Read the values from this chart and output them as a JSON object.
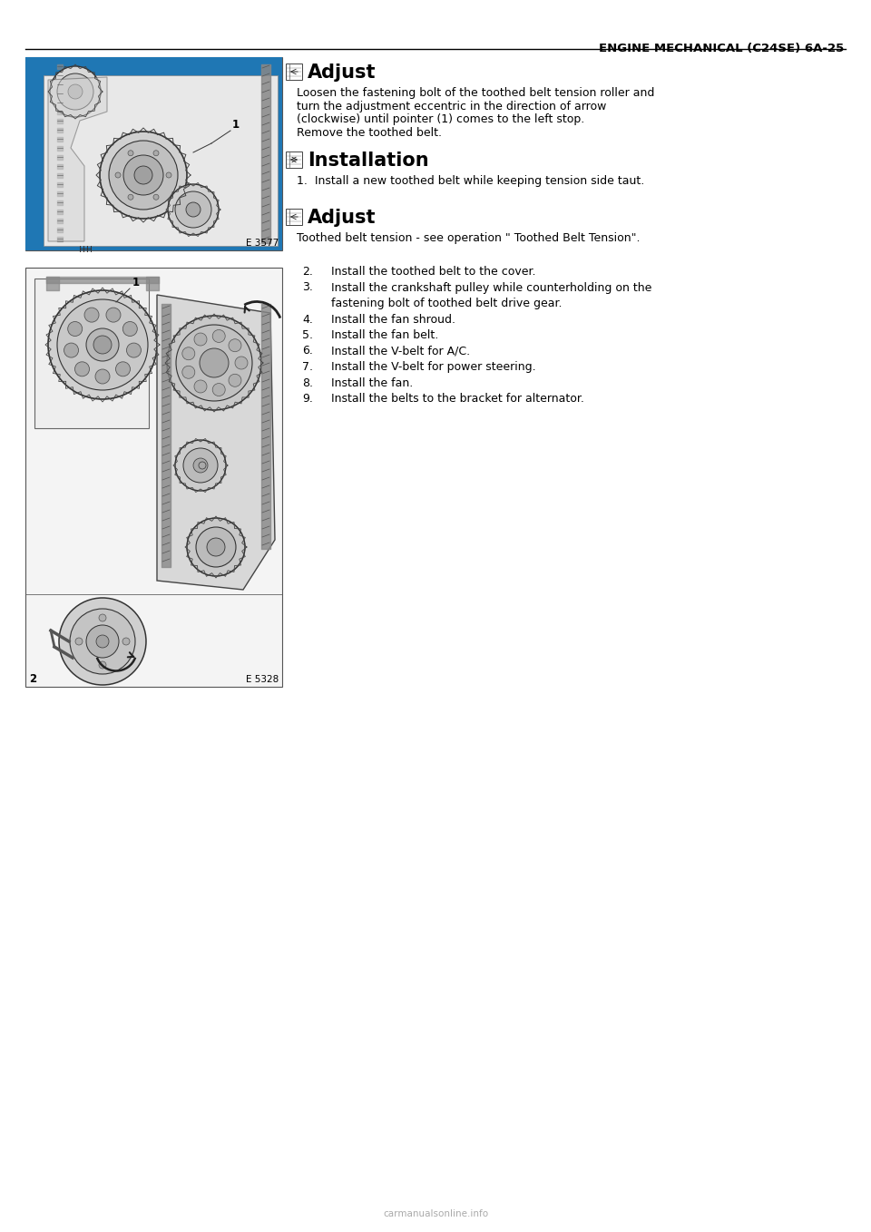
{
  "page_bg": "#ffffff",
  "header_text": "ENGINE MECHANICAL (C24SE) 6A-25",
  "header_fontsize": 10,
  "section1_title": "Adjust",
  "section1_body_lines": [
    "Loosen the fastening bolt of the toothed belt tension roller and",
    "turn the adjustment eccentric in the direction of arrow",
    "(clockwise) until pointer (1) comes to the left stop.",
    "Remove the toothed belt."
  ],
  "section2_title": "Installation",
  "section2_body_lines": [
    "1.  Install a new toothed belt while keeping tension side taut."
  ],
  "section3_title": "Adjust",
  "section3_body_lines": [
    "Toothed belt tension - see operation \" Toothed Belt Tension\"."
  ],
  "numbered_items": [
    [
      "2.",
      "Install the toothed belt to the cover."
    ],
    [
      "3.",
      "Install the crankshaft pulley while counterholding on the"
    ],
    [
      "",
      "fastening bolt of toothed belt drive gear."
    ],
    [
      "4.",
      "Install the fan shroud."
    ],
    [
      "5.",
      "Install the fan belt."
    ],
    [
      "6.",
      "Install the V-belt for A/C."
    ],
    [
      "7.",
      "Install the V-belt for power steering."
    ],
    [
      "8.",
      "Install the fan."
    ],
    [
      "9.",
      "Install the belts to the bracket for alternator."
    ]
  ],
  "img1_label": "E 3577",
  "img2_label": "E 5328",
  "footer_text": "carmanualsonline.info",
  "body_fontsize": 9.0,
  "title_fontsize": 15.0,
  "header_bold_fontsize": 9.5
}
